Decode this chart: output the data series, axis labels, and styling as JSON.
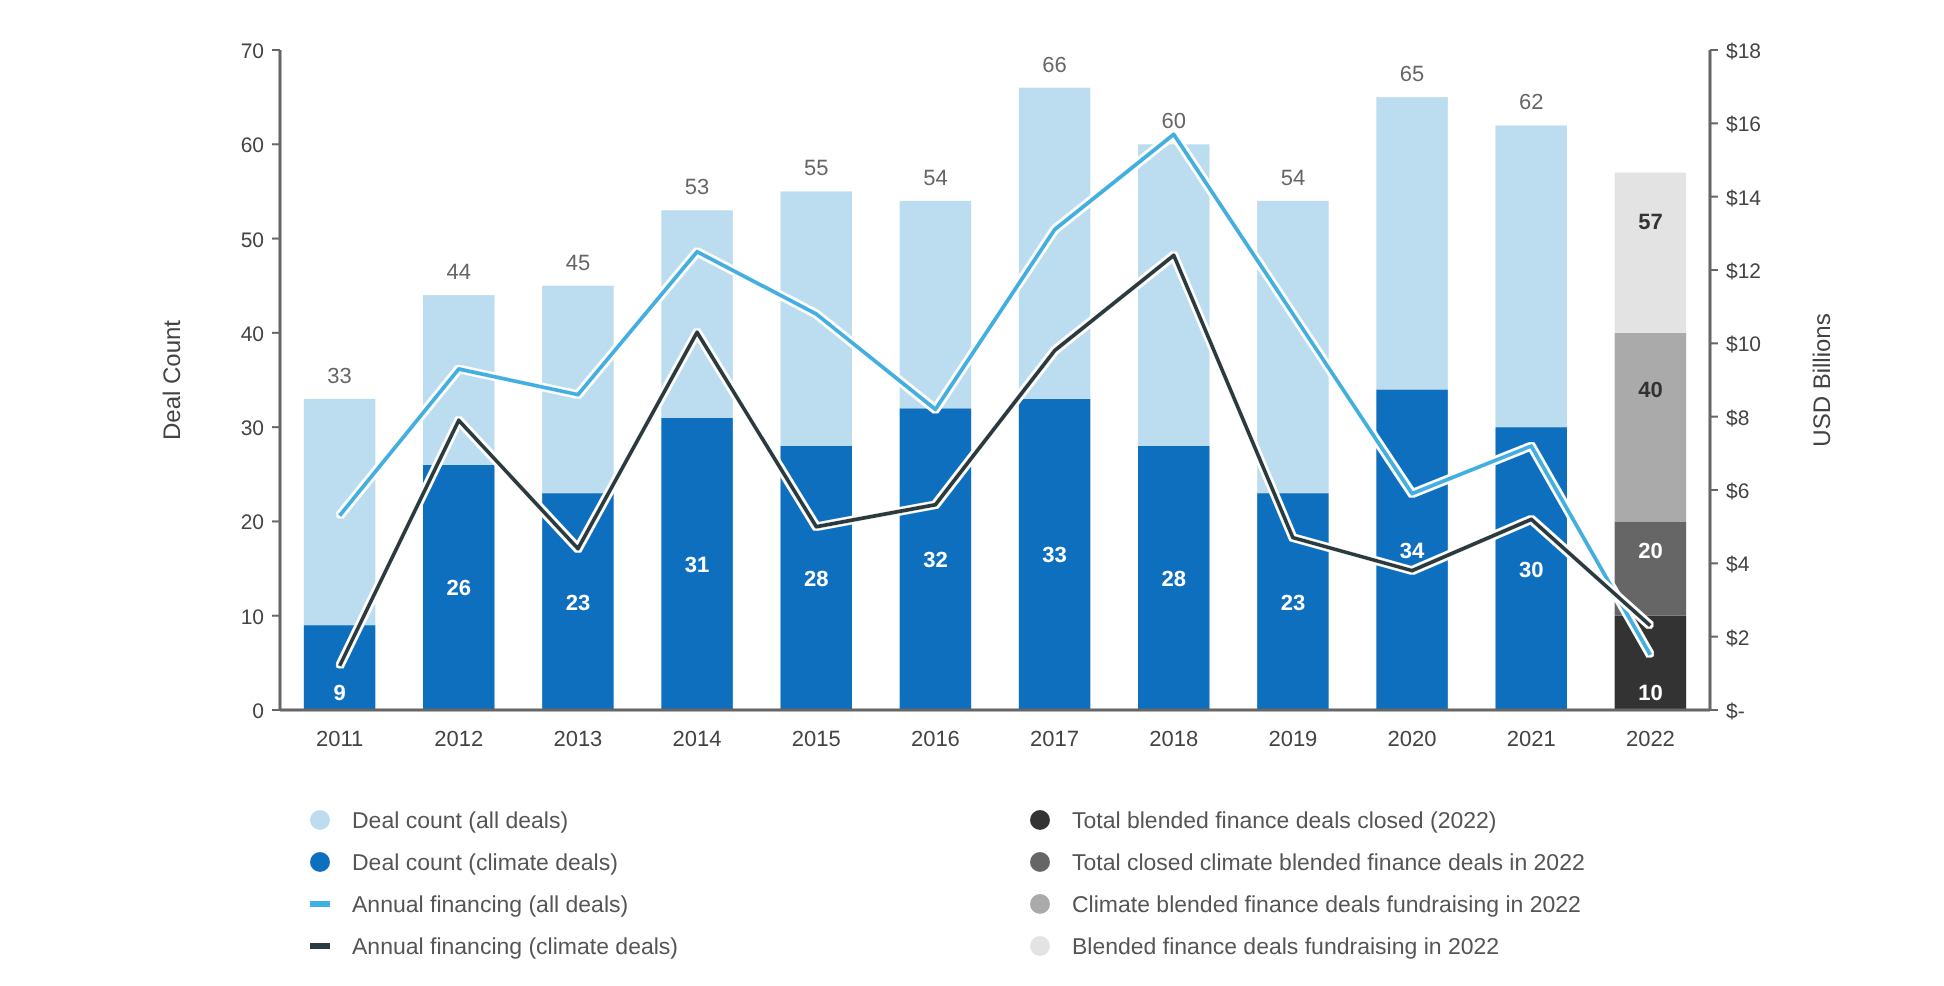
{
  "chart_data": {
    "type": "bar",
    "stacked": true,
    "ylabel": "Deal Count",
    "y2label": "USD Billions",
    "categories": [
      "2011",
      "2012",
      "2013",
      "2014",
      "2015",
      "2016",
      "2017",
      "2018",
      "2019",
      "2020",
      "2021",
      "2022"
    ],
    "ylim": [
      0,
      70
    ],
    "yticks": [
      0,
      10,
      20,
      30,
      40,
      50,
      60,
      70
    ],
    "y2lim": [
      0,
      18
    ],
    "y2ticks": [
      {
        "value": 0,
        "label": "$-"
      },
      {
        "value": 2,
        "label": "$2"
      },
      {
        "value": 4,
        "label": "$4"
      },
      {
        "value": 6,
        "label": "$6"
      },
      {
        "value": 8,
        "label": "$8"
      },
      {
        "value": 10,
        "label": "$10"
      },
      {
        "value": 12,
        "label": "$12"
      },
      {
        "value": 14,
        "label": "$14"
      },
      {
        "value": 16,
        "label": "$16"
      },
      {
        "value": 18,
        "label": "$18"
      }
    ],
    "legend": "bottom",
    "totals": [
      "33",
      "44",
      "45",
      "53",
      "55",
      "54",
      "66",
      "60",
      "54",
      "65",
      "62",
      null
    ],
    "annotations": [
      "20",
      "40",
      "57"
    ],
    "series": [
      {
        "name": "Deal count (climate deals)",
        "color": "#0e6fbf",
        "values": [
          9,
          26,
          23,
          31,
          28,
          32,
          33,
          28,
          23,
          34,
          30,
          null
        ],
        "value_labels": [
          "9",
          "26",
          "23",
          "31",
          "28",
          "32",
          "33",
          "28",
          "23",
          "34",
          "30",
          null
        ]
      },
      {
        "name": "Deal count (all deals)",
        "color": "#bcdcef",
        "values": [
          24,
          18,
          22,
          22,
          27,
          22,
          33,
          32,
          31,
          31,
          32,
          null
        ]
      },
      {
        "name": "Total blended finance deals closed (2022)",
        "color": "#333333",
        "values": [
          null,
          null,
          null,
          null,
          null,
          null,
          null,
          null,
          null,
          null,
          null,
          10
        ],
        "value_labels": [
          null,
          null,
          null,
          null,
          null,
          null,
          null,
          null,
          null,
          null,
          null,
          "10"
        ]
      },
      {
        "name": "Total closed climate blended finance deals in 2022",
        "color": "#666666",
        "values": [
          null,
          null,
          null,
          null,
          null,
          null,
          null,
          null,
          null,
          null,
          null,
          10
        ]
      },
      {
        "name": "Climate blended finance deals fundraising in 2022",
        "color": "#aaaaaa",
        "values": [
          null,
          null,
          null,
          null,
          null,
          null,
          null,
          null,
          null,
          null,
          null,
          20
        ]
      },
      {
        "name": "Blended finance deals fundraising in 2022",
        "color": "#e3e3e3",
        "values": [
          null,
          null,
          null,
          null,
          null,
          null,
          null,
          null,
          null,
          null,
          null,
          17
        ]
      },
      {
        "name": "Annual financing (all deals)",
        "type": "line",
        "axis": "y2",
        "color": "#3fb0e0",
        "values": [
          5.3,
          9.3,
          8.6,
          12.5,
          10.8,
          8.2,
          13.1,
          15.7,
          10.8,
          5.9,
          7.2,
          1.5
        ]
      },
      {
        "name": "Annual financing (climate deals)",
        "type": "line",
        "axis": "y2",
        "color": "#2a3a40",
        "values": [
          1.2,
          7.9,
          4.4,
          10.3,
          5.0,
          5.6,
          9.8,
          12.4,
          4.7,
          3.8,
          5.2,
          2.3
        ]
      }
    ]
  }
}
